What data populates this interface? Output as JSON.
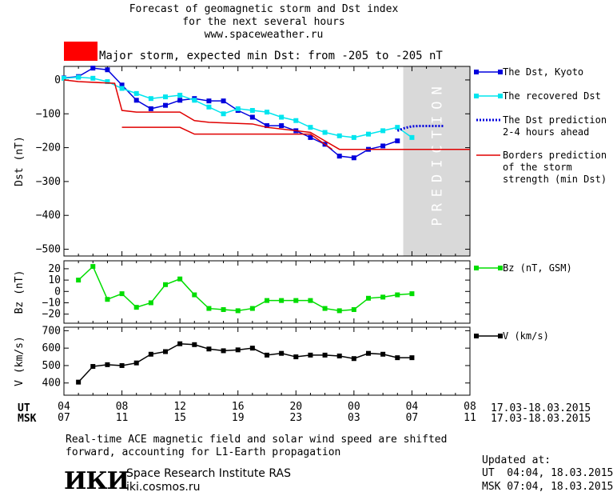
{
  "header": {
    "line1": "Forecast of geomagnetic storm and Dst index",
    "line2": "for the next several hours",
    "line3": "www.spaceweather.ru",
    "storm_label": "Major storm, expected min Dst: from -205 to -205 nT",
    "storm_color": "#ff0000"
  },
  "footer": {
    "note1": "Real-time ACE magnetic field and solar wind speed are shifted",
    "note2": "forward, accounting for L1-Earth propagation",
    "institute": "Space Research Institute RAS",
    "site": "iki.cosmos.ru",
    "logo": "ИКИ",
    "updated_label": "Updated at:",
    "updated_ut": "UT  04:04, 18.03.2015",
    "updated_msk": "MSK 07:04, 18.03.2015"
  },
  "time_axis": {
    "ut_label": "UT",
    "msk_label": "MSK",
    "ut_ticks": [
      "04",
      "08",
      "12",
      "16",
      "20",
      "00",
      "04",
      "08"
    ],
    "msk_ticks": [
      "07",
      "11",
      "15",
      "19",
      "23",
      "03",
      "07",
      "11"
    ],
    "ut_range": "17.03-18.03.2015",
    "msk_range": "17.03-18.03.2015"
  },
  "prediction_label": "PREDICTION",
  "chart_data": [
    {
      "type": "line",
      "ylabel": "Dst (nT)",
      "ylim": [
        -520,
        40
      ],
      "yticks": [
        0,
        -100,
        -200,
        -300,
        -400,
        -500
      ],
      "xlim": [
        0,
        28
      ],
      "x_unit": "hours since 04 UT 17.03.2015",
      "prediction_region": [
        23.4,
        28
      ],
      "series": [
        {
          "name": "The Dst, Kyoto",
          "color": "#0000dd",
          "marker": "square",
          "style": "solid",
          "x": [
            0,
            1,
            2,
            3,
            4,
            5,
            6,
            7,
            8,
            9,
            10,
            11,
            12,
            13,
            14,
            15,
            16,
            17,
            18,
            19,
            20,
            21,
            22,
            23
          ],
          "y": [
            6,
            10,
            35,
            30,
            -15,
            -60,
            -85,
            -75,
            -60,
            -55,
            -62,
            -62,
            -90,
            -110,
            -135,
            -135,
            -150,
            -170,
            -190,
            -225,
            -230,
            -205,
            -195,
            -180
          ]
        },
        {
          "name": "The recovered Dst",
          "color": "#00e5ee",
          "marker": "square",
          "style": "solid",
          "x": [
            0,
            1,
            2,
            3,
            4,
            5,
            6,
            7,
            8,
            9,
            10,
            11,
            12,
            13,
            14,
            15,
            16,
            17,
            18,
            19,
            20,
            21,
            22,
            23,
            24
          ],
          "y": [
            5,
            8,
            5,
            -5,
            -25,
            -40,
            -55,
            -50,
            -45,
            -60,
            -80,
            -100,
            -85,
            -90,
            -95,
            -110,
            -120,
            -140,
            -155,
            -165,
            -170,
            -160,
            -150,
            -140,
            -170
          ]
        },
        {
          "name": "The Dst prediction\n2-4 hours ahead",
          "color": "#0000dd",
          "marker": "none",
          "style": "dotted",
          "x": [
            23,
            23.5,
            24,
            24.5,
            25.2,
            26.2
          ],
          "y": [
            -150,
            -142,
            -137,
            -136,
            -136,
            -136
          ]
        },
        {
          "name": "Borders prediction\nof the storm\nstrength (min Dst)",
          "color": "#e00000",
          "marker": "none",
          "style": "solid",
          "x": [
            0,
            1,
            3.5,
            4,
            5,
            8,
            9,
            10,
            13,
            14,
            17,
            18,
            19,
            28
          ],
          "y": [
            0,
            -5,
            -10,
            -90,
            -95,
            -95,
            -120,
            -125,
            -130,
            -140,
            -155,
            -180,
            -205,
            -205
          ]
        },
        {
          "name": "",
          "color": "#e00000",
          "marker": "none",
          "style": "solid",
          "x": [
            4,
            8,
            9,
            17,
            18.5
          ],
          "y": [
            -140,
            -140,
            -160,
            -160,
            -205
          ]
        }
      ]
    },
    {
      "type": "line",
      "ylabel": "Bz (nT)",
      "ylim": [
        -28,
        27
      ],
      "yticks": [
        20,
        10,
        0,
        -10,
        -20
      ],
      "xlim": [
        0,
        28
      ],
      "series": [
        {
          "name": "Bz (nT, GSM)",
          "color": "#00dd00",
          "marker": "square",
          "style": "solid",
          "x": [
            1,
            2,
            3,
            4,
            5,
            6,
            7,
            8,
            9,
            10,
            11,
            12,
            13,
            14,
            15,
            16,
            17,
            18,
            19,
            20,
            21,
            22,
            23,
            24
          ],
          "y": [
            10,
            22,
            -7,
            -2,
            -14,
            -10,
            6,
            11,
            -3,
            -15,
            -16,
            -17,
            -15,
            -8,
            -8,
            -8,
            -8,
            -15,
            -17,
            -16,
            -6,
            -5,
            -3,
            -2
          ]
        }
      ]
    },
    {
      "type": "line",
      "ylabel": "V (km/s)",
      "ylim": [
        330,
        720
      ],
      "yticks": [
        700,
        600,
        500,
        400
      ],
      "xlim": [
        0,
        28
      ],
      "series": [
        {
          "name": "V (km/s)",
          "color": "#000000",
          "marker": "square",
          "style": "solid",
          "x": [
            1,
            2,
            3,
            4,
            5,
            6,
            7,
            8,
            9,
            10,
            11,
            12,
            13,
            14,
            15,
            16,
            17,
            18,
            19,
            20,
            21,
            22,
            23,
            24
          ],
          "y": [
            405,
            495,
            505,
            500,
            515,
            565,
            580,
            625,
            620,
            595,
            585,
            590,
            600,
            560,
            570,
            550,
            560,
            560,
            555,
            540,
            570,
            565,
            545,
            545
          ]
        }
      ]
    }
  ]
}
